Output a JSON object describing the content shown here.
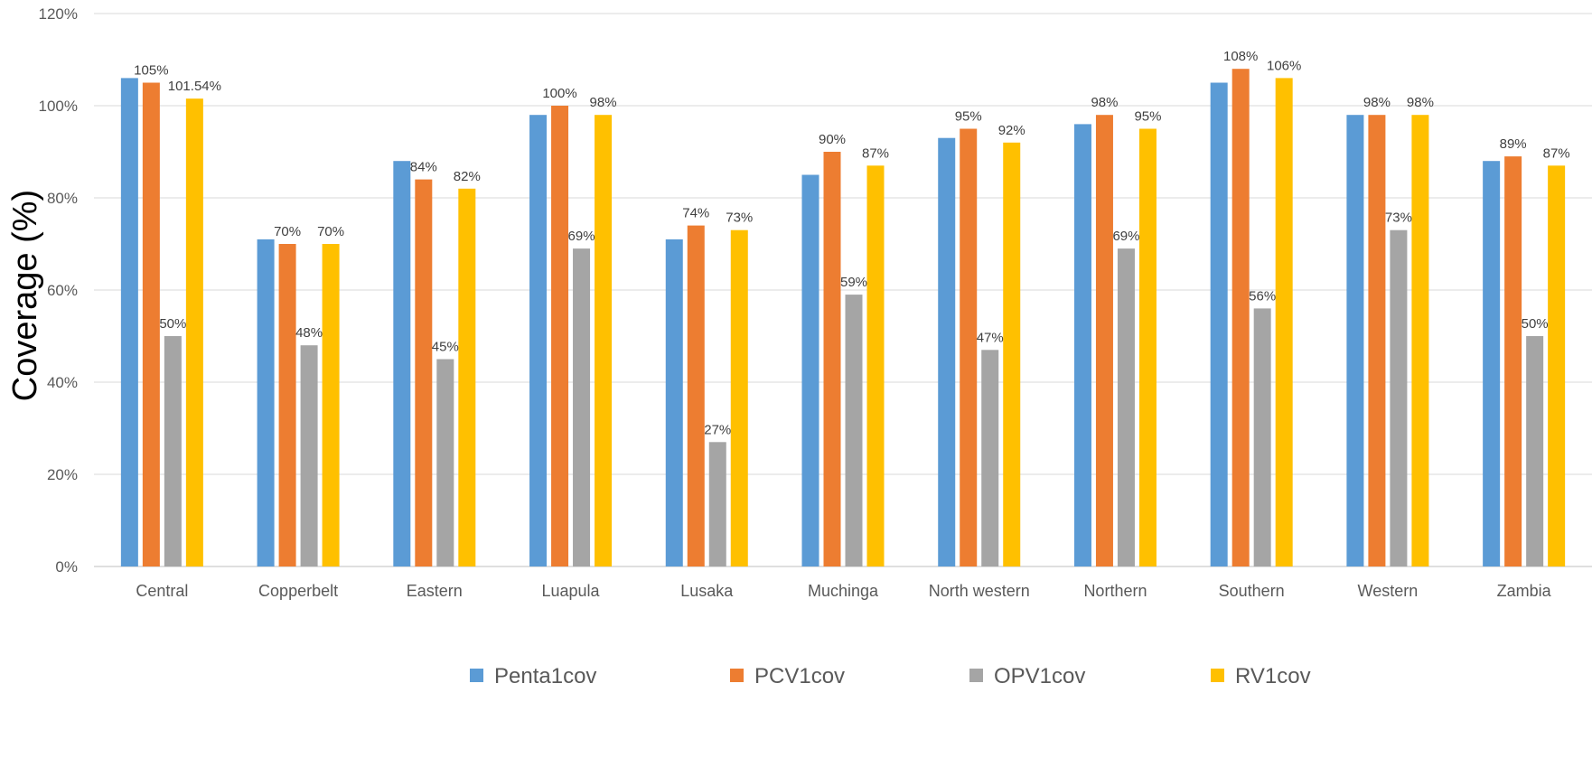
{
  "chart_data": {
    "type": "bar",
    "title": "",
    "xlabel": "",
    "ylabel": "Coverage (%)",
    "ylim": [
      0,
      120
    ],
    "yticks": [
      0,
      20,
      40,
      60,
      80,
      100,
      120
    ],
    "ytick_labels": [
      "0%",
      "20%",
      "40%",
      "60%",
      "80%",
      "100%",
      "120%"
    ],
    "grid": true,
    "legend_position": "bottom",
    "categories": [
      "Central",
      "Copperbelt",
      "Eastern",
      "Luapula",
      "Lusaka",
      "Muchinga",
      "North western",
      "Northern",
      "Southern",
      "Western",
      "Zambia"
    ],
    "series": [
      {
        "name": "Penta1cov",
        "color": "#5B9BD5",
        "values": [
          106,
          71,
          88,
          98,
          71,
          85,
          93,
          96,
          105,
          98,
          88
        ],
        "labels": [
          "",
          "",
          "",
          "",
          "",
          "",
          "",
          "",
          "",
          "",
          ""
        ]
      },
      {
        "name": "PCV1cov",
        "color": "#ED7D31",
        "values": [
          105,
          70,
          84,
          100,
          74,
          90,
          95,
          98,
          108,
          98,
          89
        ],
        "labels": [
          "105%",
          "70%",
          "84%",
          "100%",
          "74%",
          "90%",
          "95%",
          "98%",
          "108%",
          "98%",
          "89%"
        ]
      },
      {
        "name": "OPV1cov",
        "color": "#A5A5A5",
        "values": [
          50,
          48,
          45,
          69,
          27,
          59,
          47,
          69,
          56,
          73,
          50
        ],
        "labels": [
          "50%",
          "48%",
          "45%",
          "69%",
          "27%",
          "59%",
          "47%",
          "69%",
          "56%",
          "73%",
          "50%"
        ]
      },
      {
        "name": "RV1cov",
        "color": "#FFC000",
        "values": [
          101.54,
          70,
          82,
          98,
          73,
          87,
          92,
          95,
          106,
          98,
          87
        ],
        "labels": [
          "101.54%",
          "70%",
          "82%",
          "98%",
          "73%",
          "87%",
          "92%",
          "95%",
          "106%",
          "98%",
          "87%"
        ]
      }
    ]
  }
}
